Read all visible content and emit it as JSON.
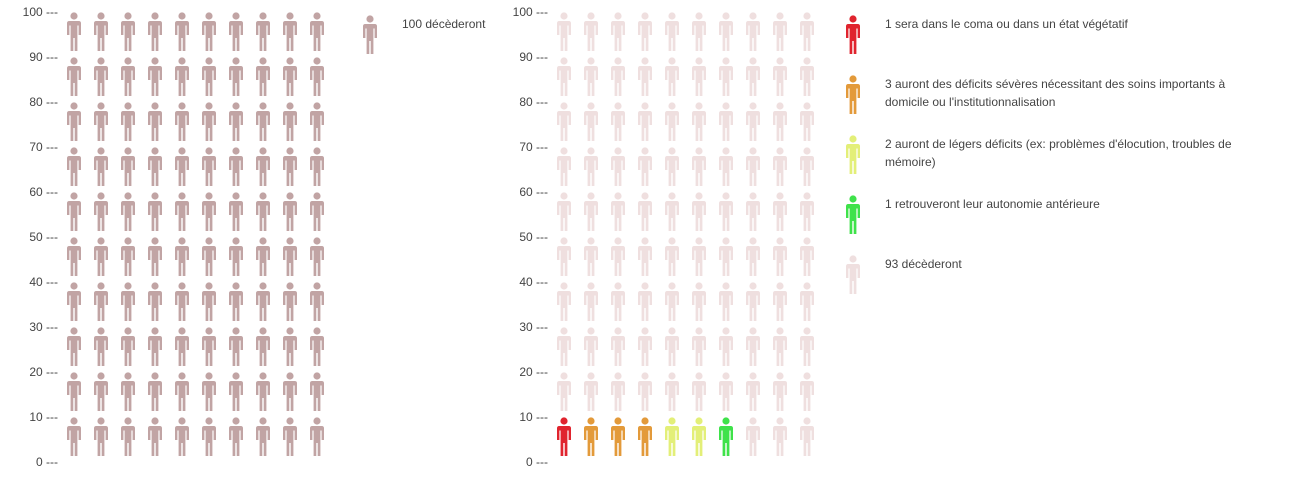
{
  "chart_data": [
    {
      "type": "pictogram",
      "ylim": [
        0,
        100
      ],
      "yticks": [
        "100 ---",
        "90 ---",
        "80 ---",
        "70 ---",
        "60 ---",
        "50 ---",
        "40 ---",
        "30 ---",
        "20 ---",
        "10 ---",
        "0 ---"
      ],
      "total": 100,
      "categories": [
        {
          "label": "100 décèderont",
          "count": 100,
          "color": "#c1a4a4"
        }
      ]
    },
    {
      "type": "pictogram",
      "ylim": [
        0,
        100
      ],
      "yticks": [
        "100 ---",
        "90 ---",
        "80 ---",
        "70 ---",
        "60 ---",
        "50 ---",
        "40 ---",
        "30 ---",
        "20 ---",
        "10 ---",
        "0 ---"
      ],
      "total": 100,
      "categories": [
        {
          "label": "1 sera dans le coma ou dans un état végétatif",
          "count": 1,
          "color": "#e0242e"
        },
        {
          "label": "3 auront des déficits sévères nécessitant des soins importants à domicile ou l'institutionnalisation",
          "count": 3,
          "color": "#e39a3a"
        },
        {
          "label": "2 auront de légers déficits (ex: problèmes d'élocution, troubles de mémoire)",
          "count": 2,
          "color": "#e3ef78"
        },
        {
          "label": "1 retrouveront leur autonomie antérieure",
          "count": 1,
          "color": "#3fe24a"
        },
        {
          "label": "93 décèderont",
          "count": 93,
          "color": "#efdfdf"
        }
      ]
    }
  ]
}
